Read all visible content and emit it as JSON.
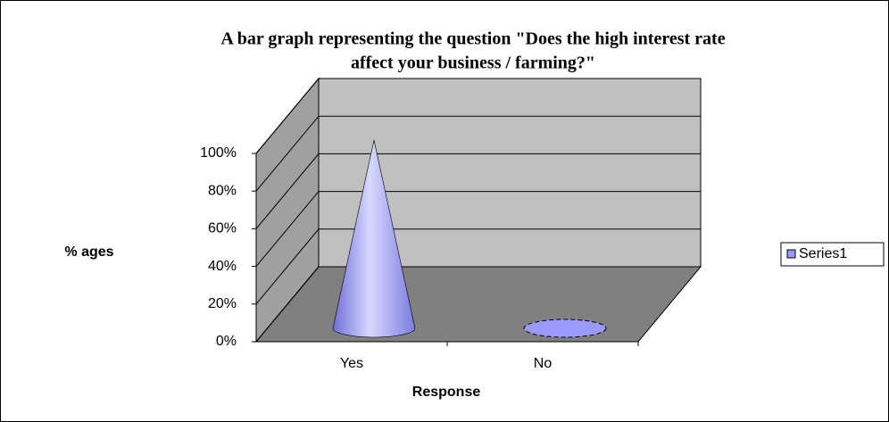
{
  "chart_data": {
    "type": "cone3d",
    "title": [
      "A bar graph representing the question \"Does the  high interest rate",
      "affect your business / farming?\""
    ],
    "x_label": "Response",
    "y_label": "% ages",
    "categories": [
      "Yes",
      "No"
    ],
    "series": [
      {
        "name": "Series1",
        "color": "#9999ff",
        "values": [
          100,
          0
        ]
      }
    ],
    "ylim": [
      0,
      100
    ],
    "yticks": [
      {
        "value": 0,
        "label": "0%"
      },
      {
        "value": 20,
        "label": "20%"
      },
      {
        "value": 40,
        "label": "40%"
      },
      {
        "value": 60,
        "label": "60%"
      },
      {
        "value": 80,
        "label": "80%"
      },
      {
        "value": 100,
        "label": "100%"
      }
    ],
    "grid": true,
    "legend": "right"
  }
}
